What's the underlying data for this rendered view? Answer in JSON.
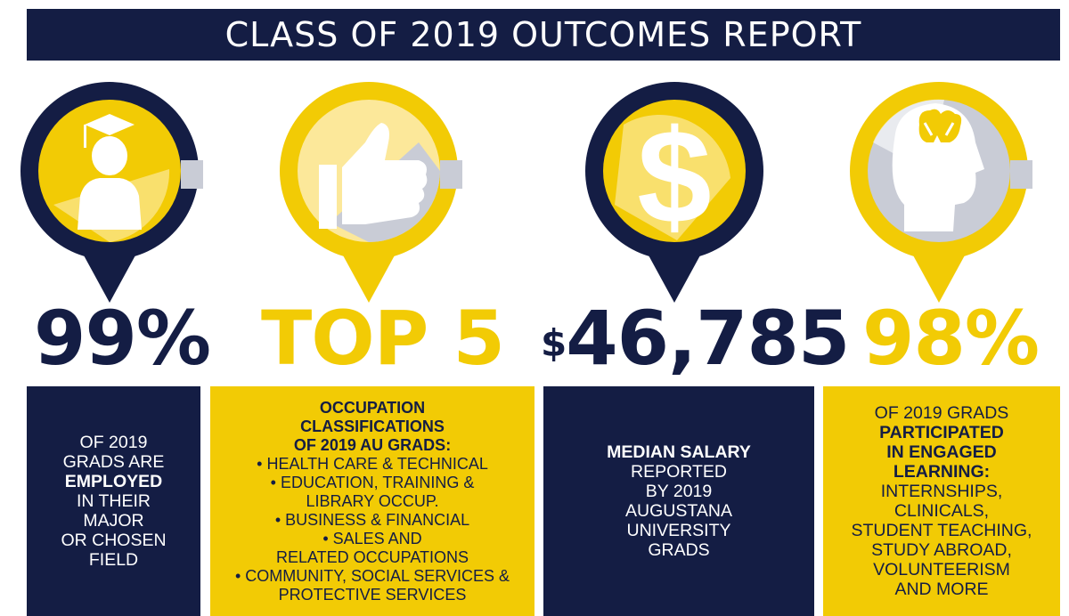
{
  "title": "CLASS OF 2019 OUTCOMES REPORT",
  "colors": {
    "navy": "#141d44",
    "gold": "#f2cb05",
    "light_gold": "#fce89a",
    "gray": "#c9ccd6"
  },
  "icons": [
    "graduate-icon",
    "thumbs-up-icon",
    "dollar-icon",
    "brain-head-icon"
  ],
  "stats": {
    "employed": "99%",
    "top": "TOP 5",
    "salary_sign": "$",
    "salary": "46,785",
    "engaged": "98%"
  },
  "box1": {
    "l1": "OF 2019",
    "l2": "GRADS ARE",
    "l3": "EMPLOYED",
    "l4": "IN THEIR",
    "l5": "MAJOR",
    "l6": "OR CHOSEN",
    "l7": "FIELD"
  },
  "box2": {
    "h1": "OCCUPATION",
    "h2": "CLASSIFICATIONS",
    "h3": "OF 2019 AU GRADS:",
    "i1": "• HEALTH CARE & TECHNICAL",
    "i2": "• EDUCATION, TRAINING &",
    "i3": "LIBRARY OCCUP.",
    "i4": "• BUSINESS & FINANCIAL",
    "i5": "• SALES AND",
    "i6": "RELATED OCCUPATIONS",
    "i7": "• COMMUNITY, SOCIAL SERVICES &",
    "i8": "PROTECTIVE SERVICES"
  },
  "box3": {
    "l1": "MEDIAN SALARY",
    "l2": "REPORTED",
    "l3": "BY 2019",
    "l4": "AUGUSTANA",
    "l5": "UNIVERSITY",
    "l6": "GRADS"
  },
  "box4": {
    "l1": "OF 2019 GRADS",
    "l2": "PARTICIPATED",
    "l3": "IN ENGAGED",
    "l4": "LEARNING:",
    "l5": "INTERNSHIPS,",
    "l6": "CLINICALS,",
    "l7": "STUDENT TEACHING,",
    "l8": "STUDY ABROAD,",
    "l9": "VOLUNTEERISM",
    "l10": "AND MORE"
  }
}
